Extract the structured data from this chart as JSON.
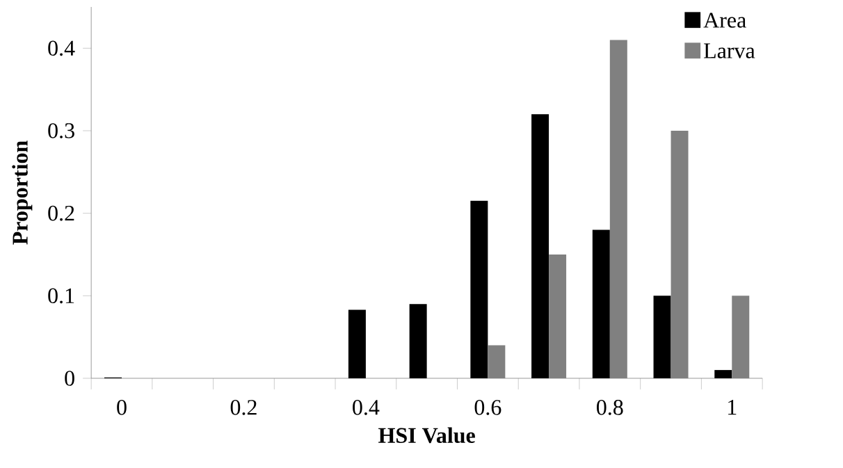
{
  "chart_data": {
    "type": "bar",
    "xlabel": "HSI Value",
    "ylabel": "Proportion",
    "categories": [
      "0",
      null,
      "0.2",
      null,
      "0.4",
      null,
      "0.6",
      null,
      "0.8",
      null,
      "1"
    ],
    "series": [
      {
        "name": "Area",
        "color": "#000000",
        "values": [
          0.001,
          0,
          0,
          0,
          0.083,
          0.09,
          0.215,
          0.32,
          0.18,
          0.1,
          0.01
        ]
      },
      {
        "name": "Larva",
        "color": "#808080",
        "values": [
          0,
          0,
          0,
          0,
          null,
          0,
          0.04,
          0.15,
          0.41,
          0.3,
          0.1
        ]
      }
    ],
    "ylim": [
      0,
      0.45
    ],
    "yticks": [
      0,
      0.1,
      0.2,
      0.3,
      0.4
    ],
    "legend": "top right"
  }
}
